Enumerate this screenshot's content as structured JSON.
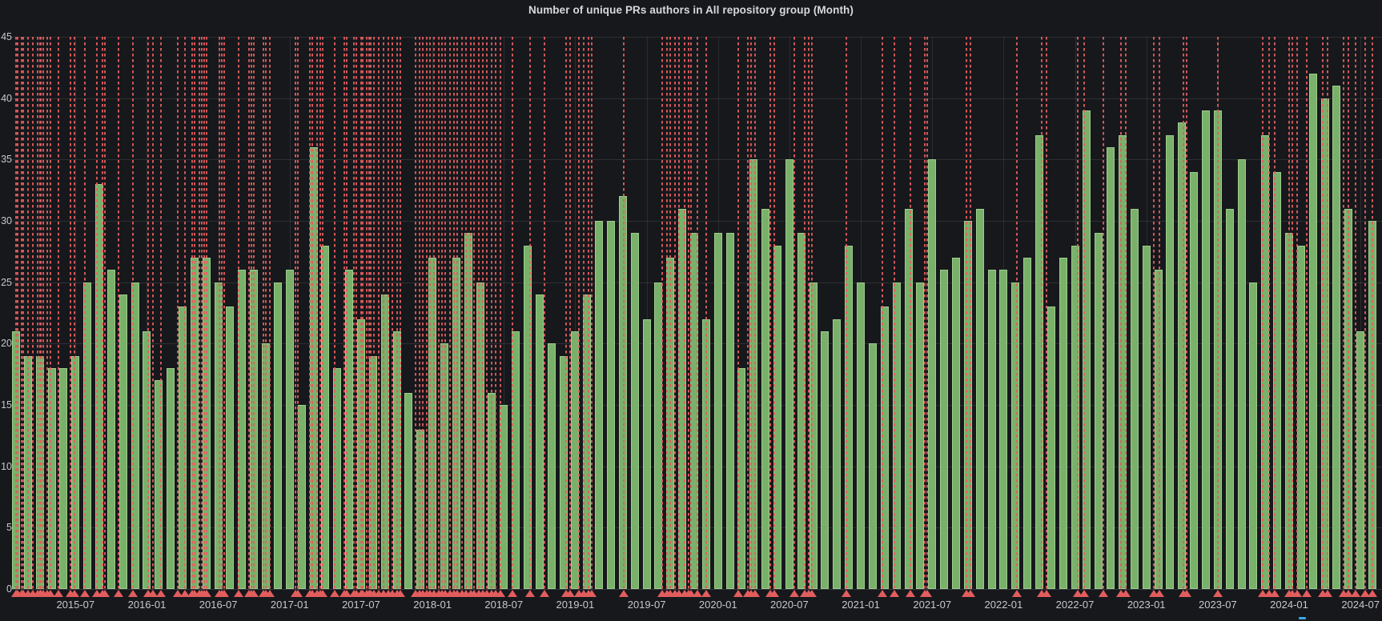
{
  "panel": {
    "title": "Number of unique PRs authors in All repository group (Month)"
  },
  "colors": {
    "background": "#16181c",
    "bar_fill": "#7ab16a",
    "bar_border": "#9ecb8d",
    "annotation": "#e25d5d",
    "axis_text": "#c7c8ca",
    "title_text": "#d8d9da",
    "legend_indicator": "#37a8e0"
  },
  "chart_data": {
    "type": "bar",
    "title": "Number of unique PRs authors in All repository group (Month)",
    "xlabel": "",
    "ylabel": "",
    "ylim": [
      0,
      45
    ],
    "y_ticks": [
      0,
      5,
      10,
      15,
      20,
      25,
      30,
      35,
      40,
      45
    ],
    "grid": true,
    "legend_position": "none",
    "x": [
      "2015-02",
      "2015-03",
      "2015-04",
      "2015-05",
      "2015-06",
      "2015-07",
      "2015-08",
      "2015-09",
      "2015-10",
      "2015-11",
      "2015-12",
      "2016-01",
      "2016-02",
      "2016-03",
      "2016-04",
      "2016-05",
      "2016-06",
      "2016-07",
      "2016-08",
      "2016-09",
      "2016-10",
      "2016-11",
      "2016-12",
      "2017-01",
      "2017-02",
      "2017-03",
      "2017-04",
      "2017-05",
      "2017-06",
      "2017-07",
      "2017-08",
      "2017-09",
      "2017-10",
      "2017-11",
      "2017-12",
      "2018-01",
      "2018-02",
      "2018-03",
      "2018-04",
      "2018-05",
      "2018-06",
      "2018-07",
      "2018-08",
      "2018-09",
      "2018-10",
      "2018-11",
      "2018-12",
      "2019-01",
      "2019-02",
      "2019-03",
      "2019-04",
      "2019-05",
      "2019-06",
      "2019-07",
      "2019-08",
      "2019-09",
      "2019-10",
      "2019-11",
      "2019-12",
      "2020-01",
      "2020-02",
      "2020-03",
      "2020-04",
      "2020-05",
      "2020-06",
      "2020-07",
      "2020-08",
      "2020-09",
      "2020-10",
      "2020-11",
      "2020-12",
      "2021-01",
      "2021-02",
      "2021-03",
      "2021-04",
      "2021-05",
      "2021-06",
      "2021-07",
      "2021-08",
      "2021-09",
      "2021-10",
      "2021-11",
      "2021-12",
      "2022-01",
      "2022-02",
      "2022-03",
      "2022-04",
      "2022-05",
      "2022-06",
      "2022-07",
      "2022-08",
      "2022-09",
      "2022-10",
      "2022-11",
      "2022-12",
      "2023-01",
      "2023-02",
      "2023-03",
      "2023-04",
      "2023-05",
      "2023-06",
      "2023-07",
      "2023-08",
      "2023-09",
      "2023-10",
      "2023-11",
      "2023-12",
      "2024-01",
      "2024-02",
      "2024-03",
      "2024-04",
      "2024-05",
      "2024-06",
      "2024-07",
      "2024-08"
    ],
    "values": [
      21,
      19,
      19,
      18,
      18,
      19,
      25,
      33,
      26,
      24,
      25,
      21,
      17,
      18,
      23,
      27,
      27,
      25,
      23,
      26,
      26,
      20,
      25,
      26,
      15,
      36,
      28,
      18,
      26,
      22,
      19,
      24,
      21,
      16,
      13,
      27,
      20,
      27,
      29,
      25,
      16,
      15,
      21,
      28,
      24,
      20,
      19,
      21,
      24,
      30,
      30,
      32,
      29,
      22,
      25,
      27,
      31,
      29,
      22,
      29,
      29,
      18,
      35,
      31,
      28,
      35,
      29,
      25,
      21,
      22,
      28,
      25,
      20,
      23,
      25,
      31,
      25,
      35,
      26,
      27,
      30,
      31,
      26,
      26,
      25,
      27,
      37,
      23,
      27,
      28,
      39,
      29,
      36,
      37,
      31,
      28,
      26,
      37,
      38,
      34,
      39,
      39,
      31,
      35,
      25,
      37,
      34,
      29,
      28,
      42,
      40,
      41,
      31,
      21,
      30
    ],
    "x_tick_labels": [
      {
        "label": "2015-07",
        "index": 5
      },
      {
        "label": "2016-01",
        "index": 11
      },
      {
        "label": "2016-07",
        "index": 17
      },
      {
        "label": "2017-01",
        "index": 23
      },
      {
        "label": "2017-07",
        "index": 29
      },
      {
        "label": "2018-01",
        "index": 35
      },
      {
        "label": "2018-07",
        "index": 41
      },
      {
        "label": "2019-01",
        "index": 47
      },
      {
        "label": "2019-07",
        "index": 53
      },
      {
        "label": "2020-01",
        "index": 59
      },
      {
        "label": "2020-07",
        "index": 65
      },
      {
        "label": "2021-01",
        "index": 71
      },
      {
        "label": "2021-07",
        "index": 77
      },
      {
        "label": "2022-01",
        "index": 83
      },
      {
        "label": "2022-07",
        "index": 89
      },
      {
        "label": "2023-01",
        "index": 95
      },
      {
        "label": "2023-07",
        "index": 101
      },
      {
        "label": "2024-01",
        "index": 107
      },
      {
        "label": "2024-07",
        "index": 113
      }
    ],
    "annotation_month_indices": [
      0.0,
      0.15,
      0.45,
      0.6,
      1.0,
      1.4,
      1.8,
      2.0,
      2.1,
      2.3,
      2.6,
      2.9,
      3.6,
      4.6,
      4.9,
      5.8,
      6.8,
      7.3,
      7.5,
      8.6,
      9.8,
      11.1,
      11.5,
      12.2,
      13.6,
      14.2,
      14.8,
      15.0,
      15.4,
      15.6,
      15.8,
      16.0,
      17.1,
      17.3,
      17.5,
      18.7,
      19.6,
      19.8,
      20.0,
      20.8,
      21.0,
      21.3,
      23.5,
      23.7,
      24.7,
      24.9,
      25.3,
      25.6,
      25.8,
      26.8,
      27.6,
      27.8,
      28.4,
      28.6,
      29.0,
      29.15,
      29.5,
      29.65,
      29.8,
      30.1,
      30.5,
      30.9,
      31.3,
      31.6,
      32.0,
      32.3,
      33.6,
      33.9,
      34.2,
      34.5,
      34.8,
      35.1,
      35.5,
      35.8,
      36.1,
      36.5,
      36.8,
      37.1,
      37.5,
      37.8,
      38.2,
      38.5,
      38.9,
      39.2,
      39.6,
      40.0,
      40.3,
      40.7,
      41.7,
      43.2,
      44.4,
      46.2,
      46.6,
      47.3,
      47.7,
      48.1,
      48.4,
      51.1,
      54.3,
      54.7,
      55.0,
      55.4,
      55.7,
      56.2,
      56.5,
      56.7,
      57.3,
      58.0,
      60.7,
      61.5,
      61.8,
      62.1,
      63.4,
      63.7,
      65.4,
      66.3,
      66.6,
      66.9,
      69.8,
      72.8,
      73.8,
      75.2,
      76.4,
      76.6,
      79.9,
      80.2,
      84.1,
      86.2,
      86.6,
      89.2,
      89.8,
      91.4,
      92.9,
      93.3,
      95.6,
      96.1,
      98.1,
      98.4,
      101.0,
      104.8,
      105.3,
      105.8,
      107.0,
      107.3,
      107.7,
      108.5,
      109.8,
      110.2,
      111.6,
      112.0,
      112.6,
      113.4,
      114.0
    ]
  }
}
